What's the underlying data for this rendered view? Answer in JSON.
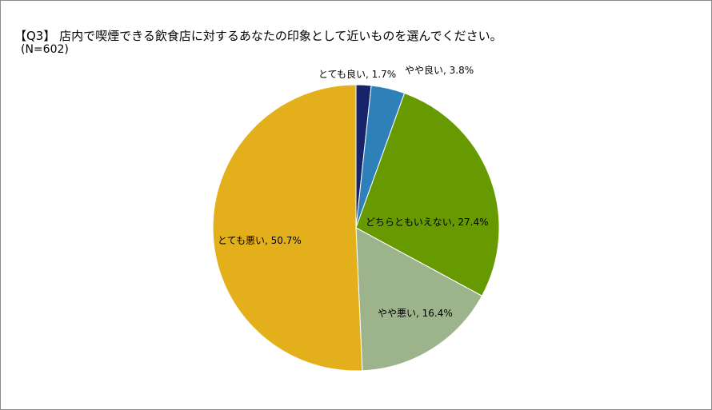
{
  "title": "【Q3】 店内で喫煙できる飲食店に対するあなたの印象として近いものを選んでください。",
  "subtitle": "(N=602)",
  "chart_data": {
    "type": "pie",
    "title": "【Q3】 店内で喫煙できる飲食店に対するあなたの印象として近いものを選んでください。",
    "subtitle": "(N=602)",
    "slices": [
      {
        "label": "とても良い",
        "value": 1.7,
        "display": "とても良い, 1.7%",
        "color": "#15246b"
      },
      {
        "label": "やや良い",
        "value": 3.8,
        "display": "やや良い, 3.8%",
        "color": "#2d80b8"
      },
      {
        "label": "どちらともいえない",
        "value": 27.4,
        "display": "どちらともいえない, 27.4%",
        "color": "#669a00"
      },
      {
        "label": "やや悪い",
        "value": 16.4,
        "display": "やや悪い, 16.4%",
        "color": "#9db38c"
      },
      {
        "label": "とても悪い",
        "value": 50.7,
        "display": "とても悪い, 50.7%",
        "color": "#e3b01b"
      }
    ]
  }
}
